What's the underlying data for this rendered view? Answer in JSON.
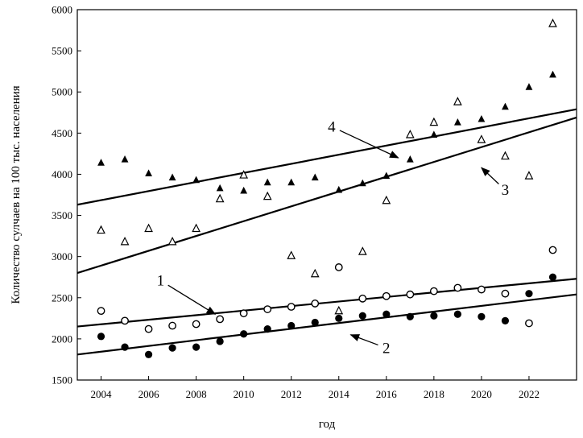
{
  "chart_data": {
    "type": "scatter",
    "xlabel": "год",
    "ylabel": "Количество сулчаев на 100 тыс. населения",
    "xlim": [
      2003,
      2024
    ],
    "ylim": [
      1500,
      6000
    ],
    "x_ticks": [
      "2004",
      "2006",
      "2008",
      "2010",
      "2012",
      "2014",
      "2016",
      "2018",
      "2020",
      "2022"
    ],
    "y_ticks": [
      "1500",
      "2000",
      "2500",
      "3000",
      "3500",
      "4000",
      "4500",
      "5000",
      "5500",
      "6000"
    ],
    "grid": false,
    "legend": "none",
    "series": [
      {
        "marker": "open-circle",
        "x": [
          2004,
          2005,
          2006,
          2007,
          2008,
          2009,
          2010,
          2011,
          2012,
          2013,
          2014,
          2015,
          2016,
          2017,
          2018,
          2019,
          2020,
          2021,
          2022,
          2023
        ],
        "y": [
          2340,
          2220,
          2120,
          2160,
          2180,
          2240,
          2310,
          2360,
          2390,
          2430,
          2870,
          2490,
          2520,
          2540,
          2580,
          2620,
          2600,
          2550,
          2190,
          3080
        ]
      },
      {
        "marker": "filled-circle",
        "x": [
          2004,
          2005,
          2006,
          2007,
          2008,
          2009,
          2010,
          2011,
          2012,
          2013,
          2014,
          2015,
          2016,
          2017,
          2018,
          2019,
          2020,
          2021,
          2022,
          2023
        ],
        "y": [
          2030,
          1900,
          1810,
          1890,
          1900,
          1970,
          2060,
          2120,
          2160,
          2200,
          2250,
          2280,
          2300,
          2270,
          2280,
          2300,
          2270,
          2220,
          2550,
          2750
        ]
      },
      {
        "marker": "filled-triangle",
        "x": [
          2004,
          2005,
          2006,
          2007,
          2008,
          2009,
          2010,
          2011,
          2012,
          2013,
          2014,
          2015,
          2016,
          2017,
          2018,
          2019,
          2020,
          2021,
          2022,
          2023
        ],
        "y": [
          4140,
          4180,
          4010,
          3960,
          3930,
          3830,
          3800,
          3900,
          3900,
          3960,
          3810,
          3890,
          3980,
          4180,
          4480,
          4630,
          4670,
          4820,
          5060,
          5210
        ]
      },
      {
        "marker": "open-triangle",
        "x": [
          2004,
          2005,
          2006,
          2007,
          2008,
          2009,
          2010,
          2011,
          2012,
          2013,
          2014,
          2015,
          2016,
          2017,
          2018,
          2019,
          2020,
          2021,
          2022,
          2023
        ],
        "y": [
          3320,
          3180,
          3340,
          3180,
          3340,
          3700,
          3990,
          3730,
          3010,
          2790,
          2340,
          3060,
          3680,
          4480,
          4630,
          4880,
          4420,
          4220,
          3980,
          5830
        ]
      }
    ],
    "trendlines": [
      {
        "label": "1",
        "x": [
          2003,
          2024
        ],
        "y": [
          2150,
          2730
        ]
      },
      {
        "label": "2",
        "x": [
          2003,
          2024
        ],
        "y": [
          1810,
          2540
        ]
      },
      {
        "label": "3",
        "x": [
          2003,
          2024
        ],
        "y": [
          2800,
          4690
        ]
      },
      {
        "label": "4",
        "x": [
          2003,
          2024
        ],
        "y": [
          3630,
          4790
        ]
      }
    ],
    "annotations": [
      {
        "text": "1",
        "label_x": 2006.5,
        "label_y": 2650,
        "arrow_to_x": 2008.8,
        "arrow_to_y": 2300
      },
      {
        "text": "2",
        "label_x": 2016.0,
        "label_y": 1830,
        "arrow_to_x": 2014.5,
        "arrow_to_y": 2050
      },
      {
        "text": "3",
        "label_x": 2021.0,
        "label_y": 3750,
        "arrow_to_x": 2020.0,
        "arrow_to_y": 4080
      },
      {
        "text": "4",
        "label_x": 2013.7,
        "label_y": 4520,
        "arrow_to_x": 2016.5,
        "arrow_to_y": 4200
      }
    ]
  }
}
